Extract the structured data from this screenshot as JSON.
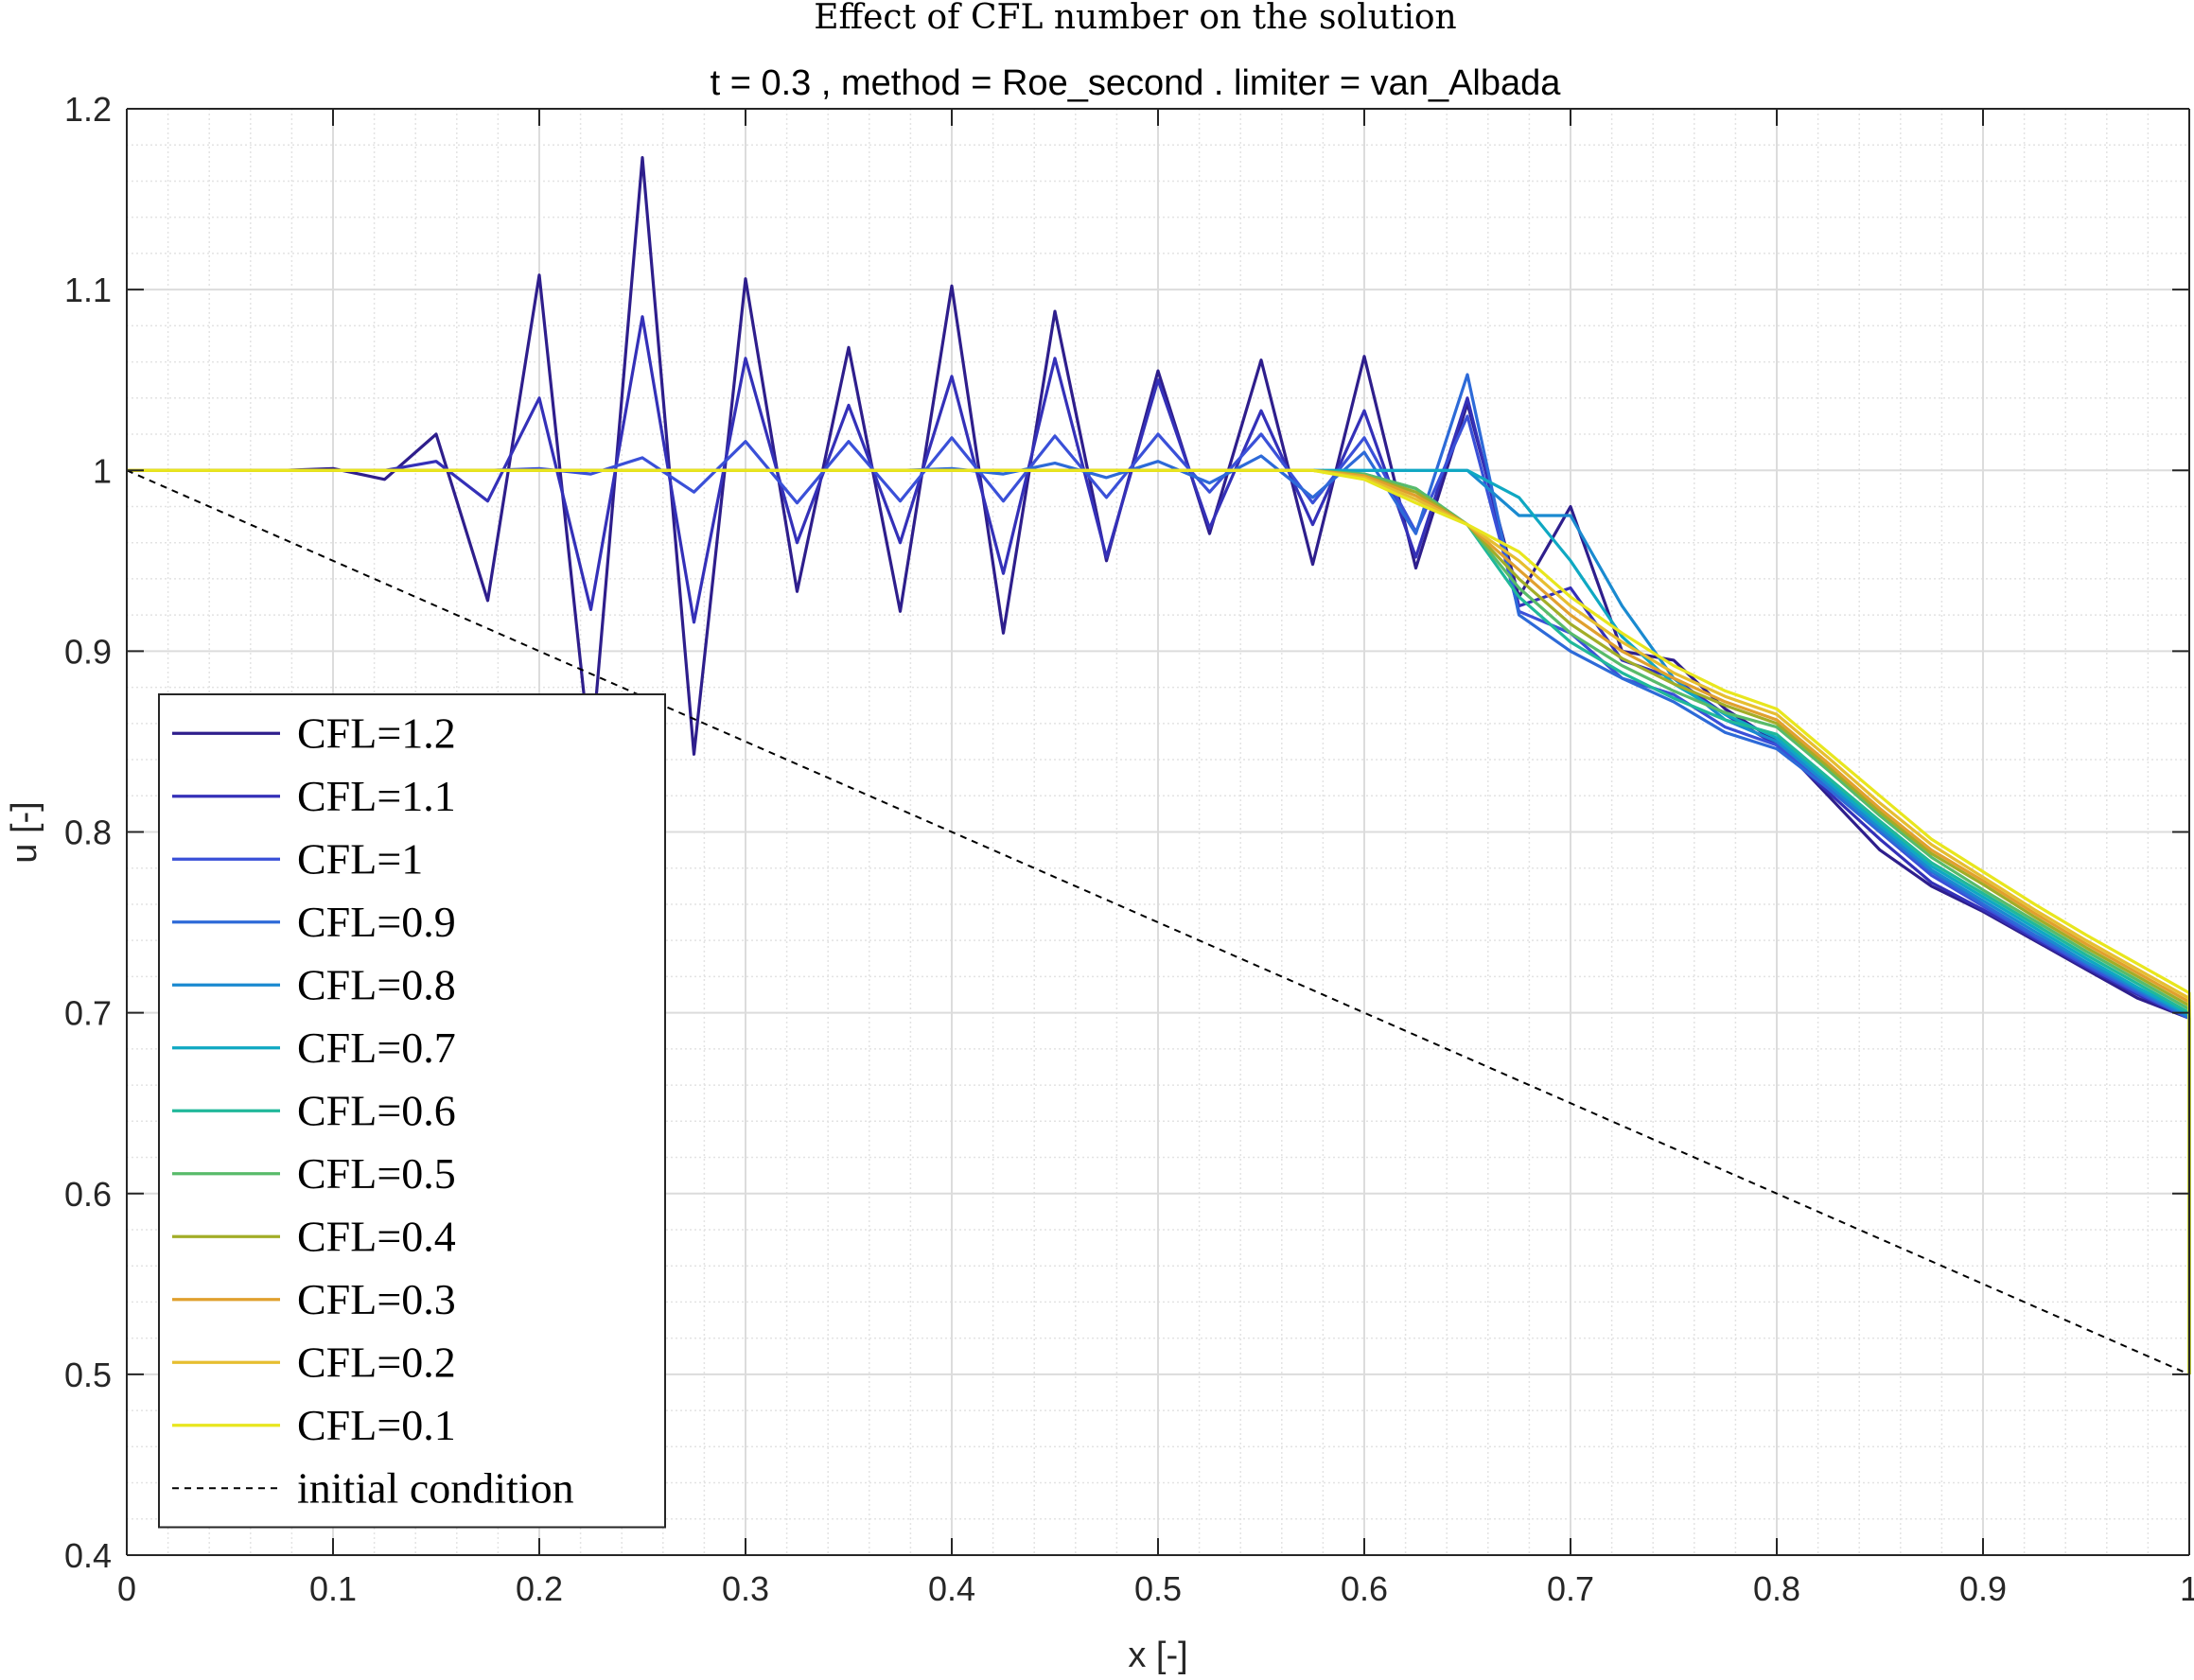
{
  "chart_data": {
    "type": "line",
    "title": "Effect of CFL number on the solution",
    "subtitle": "t = 0.3 , method = Roe_second . limiter = van_Albada",
    "xlabel": "x [-]",
    "ylabel": "u [-]",
    "xlim": [
      0,
      1
    ],
    "ylim": [
      0.4,
      1.2
    ],
    "xticks": [
      0,
      0.1,
      0.2,
      0.3,
      0.4,
      0.5,
      0.6,
      0.7,
      0.8,
      0.9,
      1
    ],
    "xtick_labels": [
      "0",
      "0.1",
      "0.2",
      "0.3",
      "0.4",
      "0.5",
      "0.6",
      "0.7",
      "0.8",
      "0.9",
      "1"
    ],
    "yticks": [
      0.4,
      0.5,
      0.6,
      0.7,
      0.8,
      0.9,
      1,
      1.1,
      1.2
    ],
    "ytick_labels": [
      "0.4",
      "0.5",
      "0.6",
      "0.7",
      "0.8",
      "0.9",
      "1",
      "1.1",
      "1.2"
    ],
    "grid": true,
    "minor_grid": true,
    "legend_position": "lower-left",
    "x": [
      0,
      0.025,
      0.05,
      0.075,
      0.1,
      0.125,
      0.15,
      0.175,
      0.2,
      0.225,
      0.25,
      0.275,
      0.3,
      0.325,
      0.35,
      0.375,
      0.4,
      0.425,
      0.45,
      0.475,
      0.5,
      0.525,
      0.55,
      0.575,
      0.6,
      0.625,
      0.65,
      0.675,
      0.7,
      0.725,
      0.75,
      0.775,
      0.8,
      0.825,
      0.85,
      0.875,
      0.9,
      0.925,
      0.95,
      0.975,
      1
    ],
    "series": [
      {
        "name": "CFL=1.2",
        "color": "#2e1e8c",
        "values": [
          1,
          1,
          1,
          1,
          1.001,
          0.995,
          1.02,
          0.928,
          1.108,
          0.84,
          1.173,
          0.843,
          1.106,
          0.933,
          1.068,
          0.922,
          1.102,
          0.91,
          1.088,
          0.95,
          1.055,
          0.965,
          1.061,
          0.948,
          1.063,
          0.946,
          1.037,
          0.93,
          0.98,
          0.9,
          0.895,
          0.868,
          0.85,
          0.82,
          0.79,
          0.77,
          0.756,
          0.74,
          0.724,
          0.708,
          0.697
        ]
      },
      {
        "name": "CFL=1.1",
        "color": "#3430b8",
        "values": [
          1,
          1,
          1,
          1,
          1,
          1,
          1.005,
          0.983,
          1.04,
          0.923,
          1.085,
          0.916,
          1.062,
          0.96,
          1.036,
          0.96,
          1.052,
          0.943,
          1.062,
          0.952,
          1.05,
          0.968,
          1.033,
          0.97,
          1.033,
          0.952,
          1.04,
          0.925,
          0.935,
          0.895,
          0.885,
          0.865,
          0.848,
          0.822,
          0.796,
          0.772,
          0.757,
          0.741,
          0.725,
          0.71,
          0.697
        ]
      },
      {
        "name": "CFL=1",
        "color": "#3a50d8",
        "values": [
          1,
          1,
          1,
          1,
          1,
          1,
          1,
          1,
          1.001,
          0.998,
          1.007,
          0.988,
          1.016,
          0.982,
          1.016,
          0.983,
          1.018,
          0.983,
          1.019,
          0.985,
          1.02,
          0.988,
          1.02,
          0.982,
          1.018,
          0.966,
          1.03,
          0.922,
          0.91,
          0.885,
          0.876,
          0.858,
          0.848,
          0.824,
          0.8,
          0.776,
          0.759,
          0.742,
          0.726,
          0.711,
          0.697
        ]
      },
      {
        "name": "CFL=0.9",
        "color": "#2d6ad8",
        "values": [
          1,
          1,
          1,
          1,
          1,
          1,
          1,
          1,
          1,
          1,
          1,
          1,
          1,
          1,
          1,
          1,
          1.001,
          0.998,
          1.004,
          0.996,
          1.005,
          0.993,
          1.008,
          0.985,
          1.01,
          0.965,
          1.053,
          0.92,
          0.9,
          0.885,
          0.872,
          0.855,
          0.846,
          0.824,
          0.8,
          0.778,
          0.76,
          0.743,
          0.727,
          0.712,
          0.697
        ]
      },
      {
        "name": "CFL=0.8",
        "color": "#1a8ad0",
        "values": [
          1,
          1,
          1,
          1,
          1,
          1,
          1,
          1,
          1,
          1,
          1,
          1,
          1,
          1,
          1,
          1,
          1,
          1,
          1,
          1,
          1,
          1,
          1,
          1,
          1,
          1,
          1,
          0.975,
          0.975,
          0.925,
          0.885,
          0.862,
          0.85,
          0.826,
          0.802,
          0.779,
          0.762,
          0.745,
          0.728,
          0.713,
          0.698
        ]
      },
      {
        "name": "CFL=0.7",
        "color": "#0fa8c2",
        "values": [
          1,
          1,
          1,
          1,
          1,
          1,
          1,
          1,
          1,
          1,
          1,
          1,
          1,
          1,
          1,
          1,
          1,
          1,
          1,
          1,
          1,
          1,
          1,
          1,
          1,
          1,
          1,
          0.985,
          0.95,
          0.908,
          0.882,
          0.865,
          0.852,
          0.828,
          0.804,
          0.781,
          0.764,
          0.747,
          0.73,
          0.714,
          0.699
        ]
      },
      {
        "name": "CFL=0.6",
        "color": "#20b89a",
        "values": [
          1,
          1,
          1,
          1,
          1,
          1,
          1,
          1,
          1,
          1,
          1,
          1,
          1,
          1,
          1,
          1,
          1,
          1,
          1,
          1,
          1,
          1,
          1,
          1,
          0.998,
          0.99,
          0.97,
          0.93,
          0.905,
          0.888,
          0.874,
          0.862,
          0.854,
          0.83,
          0.806,
          0.783,
          0.766,
          0.749,
          0.732,
          0.716,
          0.7
        ]
      },
      {
        "name": "CFL=0.5",
        "color": "#58bb6a",
        "values": [
          1,
          1,
          1,
          1,
          1,
          1,
          1,
          1,
          1,
          1,
          1,
          1,
          1,
          1,
          1,
          1,
          1,
          1,
          1,
          1,
          1,
          1,
          1,
          1,
          0.998,
          0.99,
          0.97,
          0.935,
          0.91,
          0.892,
          0.878,
          0.866,
          0.858,
          0.834,
          0.809,
          0.786,
          0.768,
          0.751,
          0.734,
          0.718,
          0.702
        ]
      },
      {
        "name": "CFL=0.4",
        "color": "#a2ad28",
        "values": [
          1,
          1,
          1,
          1,
          1,
          1,
          1,
          1,
          1,
          1,
          1,
          1,
          1,
          1,
          1,
          1,
          1,
          1,
          1,
          1,
          1,
          1,
          1,
          1,
          0.997,
          0.988,
          0.97,
          0.94,
          0.915,
          0.896,
          0.882,
          0.87,
          0.86,
          0.836,
          0.811,
          0.788,
          0.771,
          0.753,
          0.736,
          0.72,
          0.704
        ]
      },
      {
        "name": "CFL=0.3",
        "color": "#e0a02e",
        "values": [
          1,
          1,
          1,
          1,
          1,
          1,
          1,
          1,
          1,
          1,
          1,
          1,
          1,
          1,
          1,
          1,
          1,
          1,
          1,
          1,
          1,
          1,
          1,
          1,
          0.997,
          0.986,
          0.97,
          0.945,
          0.92,
          0.9,
          0.885,
          0.872,
          0.862,
          0.838,
          0.813,
          0.79,
          0.773,
          0.755,
          0.738,
          0.722,
          0.706
        ]
      },
      {
        "name": "CFL=0.2",
        "color": "#e6be30",
        "values": [
          1,
          1,
          1,
          1,
          1,
          1,
          1,
          1,
          1,
          1,
          1,
          1,
          1,
          1,
          1,
          1,
          1,
          1,
          1,
          1,
          1,
          1,
          1,
          1,
          0.996,
          0.984,
          0.97,
          0.95,
          0.925,
          0.905,
          0.888,
          0.875,
          0.865,
          0.841,
          0.816,
          0.793,
          0.775,
          0.757,
          0.74,
          0.724,
          0.708
        ]
      },
      {
        "name": "CFL=0.1",
        "color": "#e8e61e",
        "values": [
          1,
          1,
          1,
          1,
          1,
          1,
          1,
          1,
          1,
          1,
          1,
          1,
          1,
          1,
          1,
          1,
          1,
          1,
          1,
          1,
          1,
          1,
          1,
          1,
          0.995,
          0.982,
          0.97,
          0.955,
          0.93,
          0.91,
          0.892,
          0.878,
          0.868,
          0.844,
          0.82,
          0.796,
          0.778,
          0.76,
          0.743,
          0.727,
          0.711
        ]
      }
    ],
    "reference": {
      "name": "initial condition",
      "color": "#000000",
      "style": "dashed",
      "x": [
        0,
        1
      ],
      "values": [
        1,
        0.5
      ]
    }
  }
}
